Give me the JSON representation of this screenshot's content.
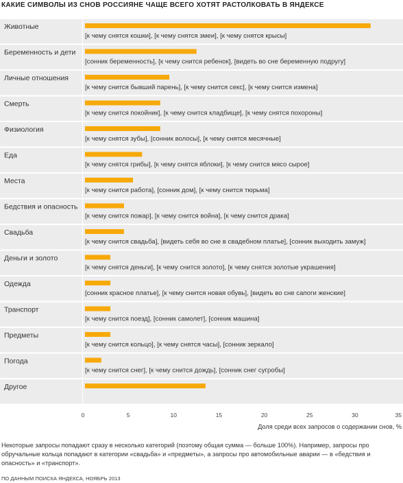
{
  "title": "КАКИЕ СИМВОЛЫ ИЗ СНОВ РОССИЯНЕ ЧАЩЕ ВСЕГО ХОТЯТ РАСТОЛКОВАТЬ В ЯНДЕКСЕ",
  "chart_data": {
    "type": "bar",
    "orientation": "horizontal",
    "title": "КАКИЕ СИМВОЛЫ ИЗ СНОВ РОССИЯНЕ ЧАЩЕ ВСЕГО ХОТЯТ РАСТОЛКОВАТЬ В ЯНДЕКСЕ",
    "xlabel": "Доля среди всех запросов о содержании снов, %",
    "xlim": [
      0,
      35
    ],
    "xticks": [
      "0",
      "5",
      "10",
      "15",
      "20",
      "25",
      "30",
      "35"
    ],
    "categories": [
      "Животные",
      "Беременность и дети",
      "Личные отношения",
      "Смерть",
      "Физиология",
      "Еда",
      "Места",
      "Бедствия и опасность",
      "Свадьба",
      "Деньги и золото",
      "Одежда",
      "Транспорт",
      "Предметы",
      "Погода",
      "Другое"
    ],
    "values": [
      31.5,
      12.3,
      9.3,
      8.3,
      8.3,
      6.3,
      5.3,
      4.3,
      4.3,
      2.8,
      2.8,
      2.8,
      2.8,
      1.8,
      13.3
    ],
    "annotations": [
      "[к чему снятся кошки], [к чему снятся змеи], [к чему снятся крысы]",
      "[сонник беременность], [к чему снится ребенок], [видеть во сне беременную подругу]",
      "[к чему снится бывший парень], [к чему снится секс], [к чему снится измена]",
      "[к чему снится покойник], [к чему снится кладбище], [к чему снятся похороны]",
      "[к чему снятся зубы], [сонник волосы], [к чему снятся месячные]",
      "[к чему снятся грибы], [к чему снятся яблоки], [к чему снится мясо сырое]",
      "[к чему снится работа], [сонник дом], [к чему снится тюрьма]",
      "[к чему снится пожар], [к чему снится война], [к чему снится драка]",
      "[к чему снится свадьба], [видеть себя во сне в свадебном платье], [сонник выходить замуж]",
      "[к чему снятся деньги], [к чему снится золото], [к чему снятся золотые украшения]",
      "[сонник красное платье], [к чему снится новая обувь], [видеть во сне сапоги женские]",
      "[к чему снится поезд], [сонник самолет], [сонник машина]",
      "[к чему снится кольцо], [к чему снятся часы], [сонник зеркало]",
      "[к чему снится снег], [к чему снится дождь], [сонник снег сугробы]",
      ""
    ],
    "bar_color": "#f7a90a",
    "grid": false,
    "legend": "none"
  },
  "note": "Некоторые запросы попадают сразу в несколько категорий (поэтому общая сумма — больше 100%). Например, запросы про обручальные кольца попадают в категории «свадьба» и «предметы», а запросы про автомобильные аварии — в «бедствия и опасность» и «транспорт».",
  "source": "ПО ДАННЫМ ПОИСКА ЯНДЕКСА, НОЯБРЬ 2013"
}
